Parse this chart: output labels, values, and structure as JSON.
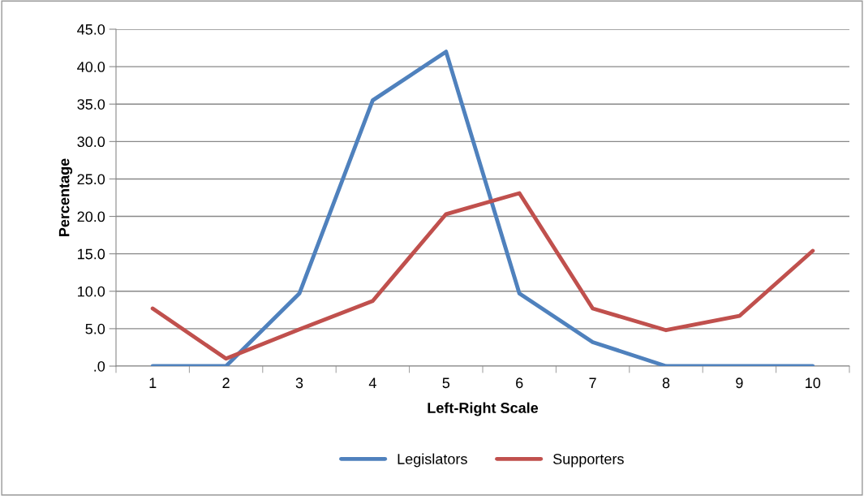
{
  "chart_data": {
    "type": "line",
    "xlabel": "Left-Right Scale",
    "ylabel": "Percentage",
    "categories": [
      "1",
      "2",
      "3",
      "4",
      "5",
      "6",
      "7",
      "8",
      "9",
      "10"
    ],
    "series": [
      {
        "name": "Legislators",
        "color": "#4f81bd",
        "values": [
          0,
          0,
          9.7,
          35.5,
          42.0,
          9.7,
          3.2,
          0,
          0,
          0
        ]
      },
      {
        "name": "Supporters",
        "color": "#c0504d",
        "values": [
          7.7,
          1.0,
          4.9,
          8.7,
          20.3,
          23.1,
          7.7,
          4.8,
          6.7,
          15.4
        ]
      }
    ],
    "ylim": [
      0,
      45
    ],
    "yticks": [
      {
        "value": 0,
        "label": ".0"
      },
      {
        "value": 5,
        "label": "5.0"
      },
      {
        "value": 10,
        "label": "10.0"
      },
      {
        "value": 15,
        "label": "15.0"
      },
      {
        "value": 20,
        "label": "20.0"
      },
      {
        "value": 25,
        "label": "25.0"
      },
      {
        "value": 30,
        "label": "30.0"
      },
      {
        "value": 35,
        "label": "35.0"
      },
      {
        "value": 40,
        "label": "40.0"
      },
      {
        "value": 45,
        "label": "45.0"
      }
    ],
    "grid": "y",
    "legend": "bottom",
    "marker": "none",
    "line_style": "solid"
  }
}
